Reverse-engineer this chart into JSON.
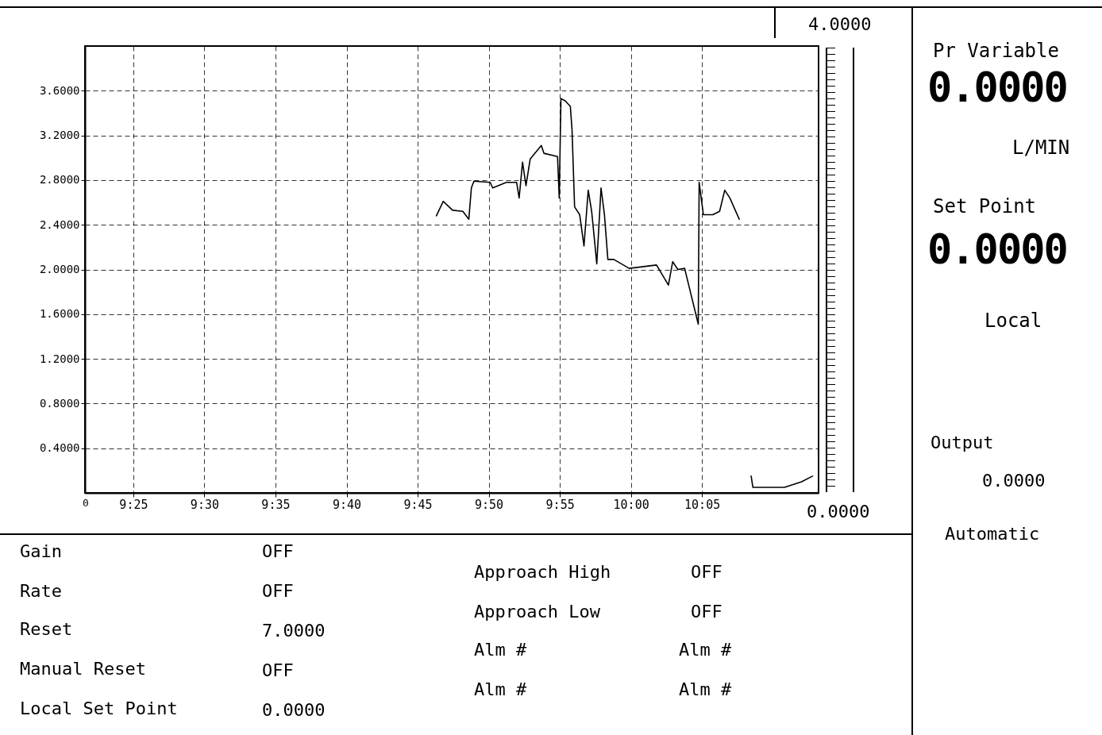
{
  "chart_data": {
    "type": "line",
    "grid": true,
    "line_style": "solid",
    "marker": "none",
    "xlim": [
      9.36,
      10.22
    ],
    "ylim": [
      0,
      4
    ],
    "xticks": [
      {
        "value": 9.4167,
        "label": "9:25"
      },
      {
        "value": 9.5,
        "label": "9:30"
      },
      {
        "value": 9.5833,
        "label": "9:35"
      },
      {
        "value": 9.6667,
        "label": "9:40"
      },
      {
        "value": 9.75,
        "label": "9:45"
      },
      {
        "value": 9.8333,
        "label": "9:50"
      },
      {
        "value": 9.9167,
        "label": "9:55"
      },
      {
        "value": 10.0,
        "label": "10:00"
      },
      {
        "value": 10.0833,
        "label": "10:05"
      }
    ],
    "yticks": [
      {
        "value": 0.4,
        "label": "0.4000"
      },
      {
        "value": 0.8,
        "label": "0.8000"
      },
      {
        "value": 1.2,
        "label": "1.2000"
      },
      {
        "value": 1.6,
        "label": "1.6000"
      },
      {
        "value": 2.0,
        "label": "2.0000"
      },
      {
        "value": 2.4,
        "label": "2.4000"
      },
      {
        "value": 2.8,
        "label": "2.8000"
      },
      {
        "value": 3.2,
        "label": "3.2000"
      },
      {
        "value": 3.6,
        "label": "3.6000"
      }
    ],
    "x": [
      9.772,
      9.78,
      9.791,
      9.803,
      9.81,
      9.813,
      9.816,
      9.835,
      9.838,
      9.854,
      9.866,
      9.869,
      9.873,
      9.877,
      9.882,
      9.895,
      9.898,
      9.914,
      9.916,
      9.918,
      9.923,
      9.929,
      9.931,
      9.934,
      9.94,
      9.945,
      9.95,
      9.954,
      9.958,
      9.96,
      9.965,
      9.969,
      9.973,
      9.98,
      9.998,
      10.03,
      10.044,
      10.049,
      10.055,
      10.063,
      10.079,
      10.08,
      10.085,
      10.096,
      10.104,
      10.11,
      10.116,
      10.127,
      10.135,
      10.141,
      10.143,
      10.18,
      10.2,
      10.213
    ],
    "series": [
      {
        "color": "#000000",
        "values": [
          2.48,
          2.61,
          2.53,
          2.52,
          2.45,
          2.73,
          2.79,
          2.78,
          2.73,
          2.78,
          2.78,
          2.64,
          2.96,
          2.75,
          2.99,
          3.11,
          3.04,
          3.01,
          2.64,
          3.53,
          3.51,
          3.46,
          3.25,
          2.56,
          2.49,
          2.21,
          2.71,
          2.52,
          2.21,
          2.05,
          2.73,
          2.49,
          2.09,
          2.09,
          2.01,
          2.04,
          1.86,
          2.07,
          2.0,
          2.01,
          1.51,
          2.78,
          2.49,
          2.49,
          2.52,
          2.71,
          2.64,
          2.45,
          null,
          0.15,
          0.05,
          0.05,
          0.1,
          0.15
        ]
      }
    ],
    "annotations": [
      "4.0000",
      "0.0000",
      "Pr Variable",
      "0.0000",
      "L/MIN",
      "Set Point",
      "0.0000",
      "Local",
      "Output",
      "0.0000",
      "Automatic",
      "Gain",
      "OFF",
      "Rate",
      "OFF",
      "Reset",
      "7.0000",
      "Manual Reset",
      "OFF",
      "Local Set Point",
      "0.0000",
      "Approach High",
      "OFF",
      "Approach Low",
      "OFF",
      "Alm #",
      "Alm #",
      "Alm #",
      "Alm #",
      "0"
    ]
  }
}
